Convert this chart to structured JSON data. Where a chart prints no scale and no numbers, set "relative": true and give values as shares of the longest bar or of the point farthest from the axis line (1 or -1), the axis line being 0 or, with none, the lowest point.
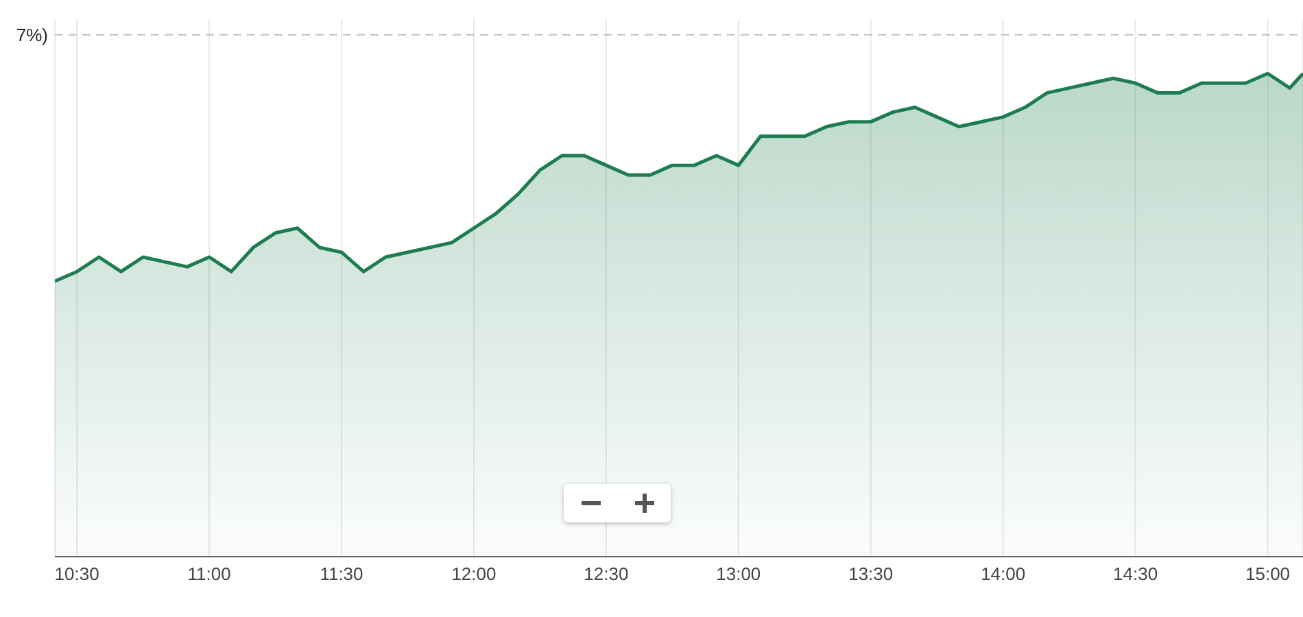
{
  "chart_data": {
    "type": "area",
    "relative": true,
    "grid": "x",
    "marker": "none",
    "line_style": "solid",
    "annotations": [
      "7%)"
    ],
    "x": [
      10.4167,
      10.5,
      10.5833,
      10.6667,
      10.75,
      10.8333,
      10.9167,
      11,
      11.0833,
      11.1667,
      11.25,
      11.3333,
      11.4167,
      11.5,
      11.5833,
      11.6667,
      11.75,
      11.8333,
      11.9167,
      12,
      12.0833,
      12.1667,
      12.25,
      12.3333,
      12.4167,
      12.5,
      12.5833,
      12.6667,
      12.75,
      12.8333,
      12.9167,
      13,
      13.0833,
      13.1667,
      13.25,
      13.3333,
      13.4167,
      13.5,
      13.5833,
      13.6667,
      13.75,
      13.8333,
      13.9167,
      14,
      14.0833,
      14.1667,
      14.25,
      14.3333,
      14.4167,
      14.5,
      14.5833,
      14.6667,
      14.75,
      14.8333,
      14.9167,
      15,
      15.0833,
      15.1333
    ],
    "xlim": [
      10.4167,
      15.1333
    ],
    "xticks": [
      {
        "value": 10.5,
        "label": "10:30"
      },
      {
        "value": 11,
        "label": "11:00"
      },
      {
        "value": 11.5,
        "label": "11:30"
      },
      {
        "value": 12,
        "label": "12:00"
      },
      {
        "value": 12.5,
        "label": "12:30"
      },
      {
        "value": 13,
        "label": "13:00"
      },
      {
        "value": 13.5,
        "label": "13:30"
      },
      {
        "value": 14,
        "label": "14:00"
      },
      {
        "value": 14.5,
        "label": "14:30"
      },
      {
        "value": 15,
        "label": "15:00"
      }
    ],
    "series": [
      {
        "color": "#1e7d50",
        "values": [
          0.57,
          0.59,
          0.62,
          0.59,
          0.62,
          0.61,
          0.6,
          0.62,
          0.59,
          0.64,
          0.67,
          0.68,
          0.64,
          0.63,
          0.59,
          0.62,
          0.63,
          0.64,
          0.65,
          0.68,
          0.71,
          0.75,
          0.8,
          0.83,
          0.83,
          0.81,
          0.79,
          0.79,
          0.81,
          0.81,
          0.83,
          0.81,
          0.87,
          0.87,
          0.87,
          0.89,
          0.9,
          0.9,
          0.92,
          0.93,
          0.91,
          0.89,
          0.9,
          0.91,
          0.93,
          0.96,
          0.97,
          0.98,
          0.99,
          0.98,
          0.96,
          0.96,
          0.98,
          0.98,
          0.98,
          1,
          0.97,
          1
        ]
      }
    ],
    "ref_lines": [
      {
        "axis": "y",
        "value": 1.08,
        "color": "#b5c9b5",
        "line_style": "dashed"
      }
    ]
  }
}
